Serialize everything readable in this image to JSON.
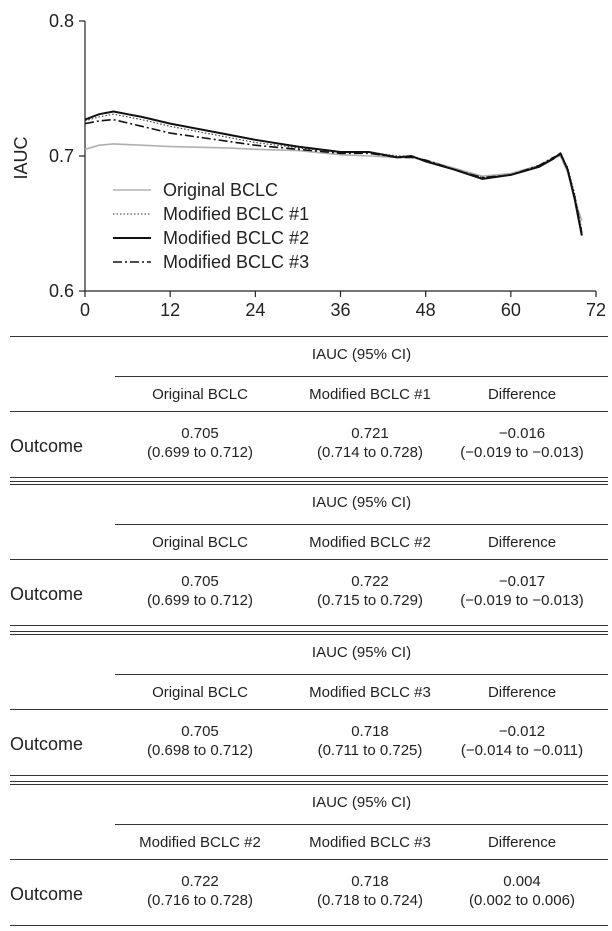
{
  "chart_data": {
    "type": "line",
    "title": "",
    "xlabel": "",
    "ylabel": "IAUC",
    "xlim": [
      0,
      72
    ],
    "ylim": [
      0.6,
      0.8
    ],
    "xticks": [
      "0",
      "12",
      "24",
      "36",
      "48",
      "60",
      "72"
    ],
    "yticks": [
      "0.6",
      "0.7",
      "0.8"
    ],
    "legend_position": "bottom-left",
    "grid": false,
    "series": [
      {
        "name": "Original BCLC",
        "style": "solid",
        "color": "#b0b0b0",
        "x": [
          0,
          2,
          4,
          8,
          12,
          20,
          24,
          30,
          36,
          40,
          44,
          46,
          48,
          52,
          56,
          60,
          64,
          66,
          67,
          68,
          69,
          70
        ],
        "y": [
          0.705,
          0.708,
          0.709,
          0.708,
          0.707,
          0.706,
          0.705,
          0.704,
          0.701,
          0.7,
          0.699,
          0.699,
          0.697,
          0.691,
          0.685,
          0.687,
          0.693,
          0.699,
          0.7,
          0.688,
          0.668,
          0.652
        ]
      },
      {
        "name": "Modified BCLC #1",
        "style": "dotted",
        "color": "#333333",
        "x": [
          0,
          2,
          4,
          8,
          12,
          20,
          24,
          30,
          36,
          40,
          44,
          46,
          48,
          52,
          56,
          60,
          64,
          66,
          67,
          68,
          69,
          70
        ],
        "y": [
          0.726,
          0.729,
          0.731,
          0.727,
          0.722,
          0.714,
          0.71,
          0.706,
          0.703,
          0.703,
          0.7,
          0.7,
          0.697,
          0.69,
          0.684,
          0.686,
          0.693,
          0.699,
          0.701,
          0.692,
          0.672,
          0.645
        ]
      },
      {
        "name": "Modified BCLC #2",
        "style": "solid",
        "color": "#111111",
        "x": [
          0,
          2,
          4,
          8,
          12,
          20,
          24,
          30,
          36,
          40,
          44,
          46,
          48,
          52,
          56,
          60,
          64,
          66,
          67,
          68,
          69,
          70
        ],
        "y": [
          0.727,
          0.731,
          0.733,
          0.729,
          0.724,
          0.716,
          0.712,
          0.707,
          0.703,
          0.703,
          0.699,
          0.7,
          0.696,
          0.69,
          0.683,
          0.686,
          0.692,
          0.698,
          0.702,
          0.69,
          0.668,
          0.641
        ]
      },
      {
        "name": "Modified BCLC #3",
        "style": "dashdot",
        "color": "#111111",
        "x": [
          0,
          2,
          4,
          8,
          12,
          20,
          24,
          30,
          36,
          40,
          44,
          46,
          48,
          52,
          56,
          60,
          64,
          66,
          67,
          68,
          69,
          70
        ],
        "y": [
          0.724,
          0.726,
          0.727,
          0.722,
          0.717,
          0.711,
          0.708,
          0.705,
          0.702,
          0.702,
          0.699,
          0.699,
          0.697,
          0.69,
          0.684,
          0.686,
          0.693,
          0.699,
          0.701,
          0.69,
          0.67,
          0.643
        ]
      }
    ]
  },
  "tables": [
    {
      "group_header": "IAUC (95% CI)",
      "columns": [
        "Original BCLC",
        "Modified BCLC #1",
        "Difference"
      ],
      "row_label": "Outcome",
      "values": [
        {
          "value": "0.705",
          "ci": "(0.699 to 0.712)"
        },
        {
          "value": "0.721",
          "ci": "(0.714 to 0.728)"
        },
        {
          "value": "−0.016",
          "ci": "(−0.019 to −0.013)"
        }
      ]
    },
    {
      "group_header": "IAUC (95% CI)",
      "columns": [
        "Original BCLC",
        "Modified BCLC #2",
        "Difference"
      ],
      "row_label": "Outcome",
      "values": [
        {
          "value": "0.705",
          "ci": "(0.699 to 0.712)"
        },
        {
          "value": "0.722",
          "ci": "(0.715 to 0.729)"
        },
        {
          "value": "−0.017",
          "ci": "(−0.019 to −0.013)"
        }
      ]
    },
    {
      "group_header": "IAUC (95% CI)",
      "columns": [
        "Original BCLC",
        "Modified BCLC #3",
        "Difference"
      ],
      "row_label": "Outcome",
      "values": [
        {
          "value": "0.705",
          "ci": "(0.698 to 0.712)"
        },
        {
          "value": "0.718",
          "ci": "(0.711 to 0.725)"
        },
        {
          "value": "−0.012",
          "ci": "(−0.014 to −0.011)"
        }
      ]
    },
    {
      "group_header": "IAUC (95% CI)",
      "columns": [
        "Modified BCLC #2",
        "Modified BCLC #3",
        "Difference"
      ],
      "row_label": "Outcome",
      "values": [
        {
          "value": "0.722",
          "ci": "(0.716 to 0.728)"
        },
        {
          "value": "0.718",
          "ci": "(0.718 to 0.724)"
        },
        {
          "value": "0.004",
          "ci": "(0.002 to 0.006)"
        }
      ]
    }
  ]
}
